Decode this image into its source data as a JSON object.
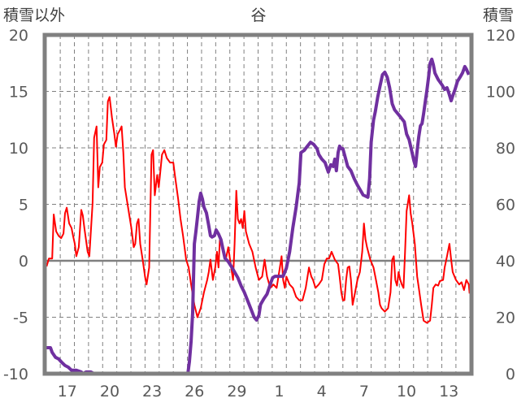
{
  "chart_data": {
    "type": "line",
    "title": "谷",
    "ylabel": "積雪以外",
    "y2label": "積雪",
    "ylim": [
      -10,
      20
    ],
    "y2lim": [
      0,
      120
    ],
    "yticks": [
      "-10",
      "-5",
      "0",
      "5",
      "10",
      "15",
      "20"
    ],
    "y2ticks": [
      "0",
      "20",
      "40",
      "60",
      "80",
      "100",
      "120"
    ],
    "x_unit": "days after start of day 17",
    "xlim": [
      -1.1,
      29.1
    ],
    "xtick_positions": [
      0.5,
      3.5,
      6.5,
      9.5,
      12.5,
      15.5,
      18.5,
      21.5,
      24.5,
      27.5
    ],
    "xtick_labels": [
      "17",
      "20",
      "23",
      "26",
      "29",
      "1",
      "4",
      "7",
      "10",
      "13"
    ],
    "grid": true,
    "series": [
      {
        "name": "積雪以外",
        "axis": "left",
        "color": "#FF0000",
        "x": [
          -0.97,
          -0.8,
          -0.57,
          -0.46,
          -0.29,
          -0.11,
          0.06,
          0.23,
          0.34,
          0.46,
          0.63,
          0.8,
          0.91,
          1.03,
          1.14,
          1.31,
          1.49,
          1.6,
          1.71,
          1.94,
          2.06,
          2.29,
          2.4,
          2.57,
          2.69,
          2.8,
          2.97,
          3.09,
          3.26,
          3.37,
          3.49,
          3.66,
          3.83,
          3.94,
          4.06,
          4.23,
          4.34,
          4.46,
          4.57,
          4.8,
          5.03,
          5.2,
          5.31,
          5.43,
          5.54,
          5.66,
          5.83,
          6.0,
          6.11,
          6.29,
          6.46,
          6.57,
          6.69,
          6.86,
          6.97,
          7.2,
          7.37,
          7.54,
          7.77,
          8.0,
          8.11,
          8.34,
          8.51,
          8.69,
          8.91,
          9.09,
          9.26,
          9.49,
          9.71,
          9.94,
          10.17,
          10.4,
          10.51,
          10.63,
          10.8,
          10.97,
          11.09,
          11.2,
          11.31,
          11.43,
          11.54,
          11.71,
          11.89,
          12.06,
          12.23,
          12.34,
          12.46,
          12.57,
          12.69,
          12.8,
          12.91,
          13.03,
          13.14,
          13.37,
          13.6,
          13.83,
          14.06,
          14.29,
          14.46,
          14.63,
          14.86,
          15.09,
          15.31,
          15.54,
          15.66,
          15.77,
          15.89,
          16.0,
          16.23,
          16.46,
          16.69,
          16.91,
          17.14,
          17.37,
          17.6,
          17.77,
          17.89,
          18.06,
          18.29,
          18.51,
          18.69,
          18.86,
          19.03,
          19.2,
          19.43,
          19.66,
          19.77,
          19.89,
          20.0,
          20.11,
          20.23,
          20.34,
          20.46,
          20.57,
          20.69,
          20.86,
          21.03,
          21.2,
          21.37,
          21.49,
          21.6,
          21.71,
          21.94,
          22.17,
          22.34,
          22.51,
          22.63,
          22.74,
          22.97,
          23.2,
          23.37,
          23.49,
          23.6,
          23.71,
          23.83,
          23.94,
          24.06,
          24.17,
          24.29,
          24.4,
          24.51,
          24.69,
          24.8,
          24.91,
          25.09,
          25.26,
          25.37,
          25.54,
          25.71,
          25.94,
          26.17,
          26.29,
          26.4,
          26.57,
          26.74,
          26.86,
          27.09,
          27.2,
          27.37,
          27.54,
          27.66,
          27.77,
          28.0,
          28.23,
          28.4,
          28.57,
          28.74,
          28.91,
          28.97
        ],
        "y": [
          -0.5,
          0.2,
          0.2,
          4.1,
          2.6,
          2.2,
          2.0,
          2.4,
          4.2,
          4.7,
          3.3,
          2.9,
          2.2,
          1.5,
          0.4,
          1.2,
          4.5,
          4.0,
          2.9,
          0.8,
          0.4,
          5.1,
          10.9,
          11.9,
          6.5,
          8.3,
          8.7,
          10.3,
          10.7,
          14.1,
          14.5,
          12.7,
          11.2,
          10.1,
          11.2,
          11.6,
          11.9,
          9.6,
          6.5,
          4.7,
          2.9,
          1.2,
          1.5,
          3.3,
          3.7,
          1.5,
          0.1,
          -1.4,
          -2.1,
          -0.6,
          9.4,
          9.8,
          5.8,
          7.6,
          6.5,
          9.4,
          9.8,
          9.1,
          8.7,
          8.7,
          7.6,
          5.5,
          3.7,
          2.2,
          0.1,
          -0.6,
          -2.1,
          -3.9,
          -5.0,
          -4.2,
          -2.8,
          -1.7,
          -1.0,
          0.1,
          -1.7,
          -0.6,
          0.8,
          -0.6,
          2.2,
          1.5,
          0.8,
          0.1,
          1.2,
          -0.3,
          -1.7,
          1.5,
          6.2,
          3.7,
          3.3,
          3.7,
          2.9,
          4.4,
          2.6,
          1.5,
          0.8,
          -0.6,
          -1.7,
          -1.4,
          0.1,
          -1.4,
          -2.4,
          -2.1,
          -2.4,
          -0.6,
          0.4,
          -1.7,
          -2.4,
          -1.4,
          -2.1,
          -2.4,
          -3.2,
          -3.5,
          -3.5,
          -2.4,
          -0.6,
          -1.4,
          -1.7,
          -2.4,
          -2.1,
          -1.7,
          -0.3,
          0.2,
          0.2,
          0.8,
          0.1,
          -0.3,
          -1.4,
          -2.8,
          -3.5,
          -3.5,
          -1.7,
          -0.6,
          -0.5,
          -1.7,
          -3.9,
          -2.8,
          -1.7,
          -1.0,
          0.8,
          3.3,
          1.9,
          1.2,
          0.1,
          -0.6,
          -1.7,
          -2.8,
          -3.9,
          -4.2,
          -4.5,
          -4.2,
          -2.8,
          0.1,
          0.4,
          -1.7,
          -2.2,
          -1.0,
          -1.7,
          -2.1,
          -2.4,
          0.8,
          4.4,
          5.8,
          4.2,
          3.3,
          1.5,
          -1.4,
          -2.4,
          -3.9,
          -5.3,
          -5.5,
          -5.3,
          -3.9,
          -2.4,
          -2.1,
          -2.2,
          -1.8,
          -1.7,
          -0.6,
          0.4,
          1.5,
          0.1,
          -1.0,
          -1.7,
          -2.1,
          -1.9,
          -2.6,
          -1.7,
          -2.1,
          -2.9
        ]
      },
      {
        "name": "積雪",
        "axis": "right",
        "color": "#7030A0",
        "x": [
          -1.09,
          -0.69,
          -0.57,
          -0.34,
          -0.11,
          0.11,
          0.34,
          0.57,
          0.8,
          1.14,
          1.49,
          1.6,
          1.83,
          2.17,
          2.4,
          9.03,
          9.14,
          9.26,
          9.37,
          9.49,
          9.6,
          9.71,
          9.83,
          9.94,
          10.06,
          10.17,
          10.34,
          10.51,
          10.63,
          10.74,
          10.91,
          11.03,
          11.2,
          11.37,
          11.49,
          11.66,
          11.89,
          12.11,
          12.34,
          12.57,
          12.8,
          13.03,
          13.26,
          13.49,
          13.71,
          13.89,
          14.06,
          14.17,
          14.4,
          14.63,
          14.86,
          15.03,
          15.2,
          15.54,
          15.77,
          16.0,
          16.23,
          16.46,
          16.69,
          16.8,
          16.91,
          17.03,
          17.26,
          17.49,
          17.71,
          17.94,
          18.17,
          18.29,
          18.51,
          18.74,
          18.97,
          19.14,
          19.31,
          19.43,
          19.54,
          19.66,
          19.77,
          19.89,
          20.0,
          20.11,
          20.34,
          20.57,
          20.8,
          21.03,
          21.26,
          21.43,
          21.77,
          21.89,
          22.0,
          22.17,
          22.29,
          22.46,
          22.63,
          22.8,
          22.97,
          23.14,
          23.31,
          23.49,
          23.66,
          23.89,
          24.11,
          24.34,
          24.51,
          24.69,
          24.86,
          25.03,
          25.14,
          25.26,
          25.37,
          25.49,
          25.6,
          25.71,
          25.83,
          25.94,
          26.06,
          26.17,
          26.29,
          26.4,
          26.51,
          26.74,
          27.03,
          27.2,
          27.37,
          27.49,
          27.66,
          27.77,
          27.94,
          28.11,
          28.29,
          28.46,
          28.63,
          28.74,
          28.91
        ],
        "y": [
          9.2,
          9.2,
          7.5,
          5.8,
          5.2,
          4.0,
          2.9,
          2.3,
          1.2,
          1.2,
          0.6,
          0,
          0.6,
          0.6,
          0,
          0,
          4.3,
          11.5,
          21.6,
          46.0,
          50.4,
          55.3,
          61.0,
          63.9,
          61.9,
          59.0,
          57.0,
          52.4,
          48.9,
          48.4,
          48.9,
          50.9,
          49.5,
          47.5,
          44.6,
          40.9,
          39.7,
          38.0,
          36.0,
          34.0,
          31.1,
          28.8,
          25.9,
          23.0,
          20.1,
          19.0,
          20.7,
          24.5,
          26.5,
          28.2,
          31.7,
          34.0,
          34.5,
          34.5,
          34.5,
          37.4,
          43.2,
          51.8,
          59.0,
          63.3,
          67.6,
          78.3,
          79.1,
          80.6,
          82.0,
          81.2,
          79.7,
          77.7,
          76.0,
          74.8,
          71.4,
          74.0,
          73.4,
          76.0,
          71.9,
          78.3,
          80.6,
          79.7,
          79.7,
          77.7,
          73.4,
          71.9,
          69.1,
          66.8,
          64.8,
          63.3,
          62.5,
          69.1,
          82.0,
          89.8,
          92.7,
          97.9,
          101.9,
          105.9,
          106.8,
          105.0,
          101.3,
          95.6,
          93.5,
          92.1,
          90.7,
          89.2,
          84.9,
          82.9,
          79.1,
          75.4,
          73.4,
          79.1,
          84.0,
          87.8,
          88.6,
          92.1,
          96.4,
          100.2,
          105.0,
          109.9,
          111.4,
          109.4,
          106.5,
          104.2,
          102.2,
          100.7,
          101.3,
          99.6,
          96.7,
          98.4,
          100.7,
          103.6,
          105.0,
          106.5,
          108.8,
          107.9,
          105.9
        ]
      }
    ]
  }
}
